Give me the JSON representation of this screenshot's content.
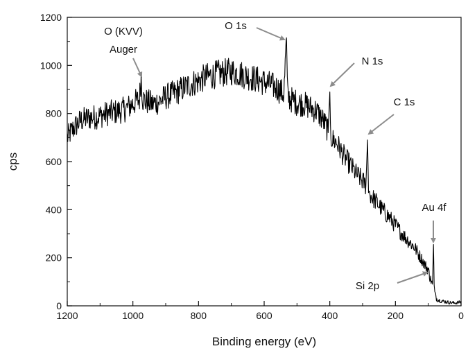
{
  "chart_data": {
    "type": "line",
    "title": "",
    "xlabel": "Binding energy (eV)",
    "ylabel": "cps",
    "xlim": [
      1200,
      0
    ],
    "ylim": [
      0,
      1200
    ],
    "x_reversed": true,
    "x_ticks": [
      1200,
      1000,
      800,
      600,
      400,
      200,
      0
    ],
    "y_ticks": [
      0,
      200,
      400,
      600,
      800,
      1000,
      1200
    ],
    "grid": false,
    "legend": "none",
    "line_color": "#000000",
    "annotation_color": "#8c8c8c",
    "series": [
      {
        "x": [
          1200,
          1180,
          1160,
          1140,
          1120,
          1100,
          1080,
          1060,
          1040,
          1020,
          1000,
          990,
          980,
          975,
          970,
          960,
          940,
          920,
          900,
          880,
          860,
          840,
          820,
          800,
          780,
          760,
          740,
          720,
          700,
          680,
          660,
          640,
          620,
          600,
          580,
          560,
          540,
          532,
          528,
          520,
          500,
          480,
          460,
          440,
          420,
          410,
          405,
          400,
          398,
          395,
          390,
          380,
          360,
          340,
          320,
          300,
          290,
          285,
          282,
          280,
          270,
          260,
          240,
          220,
          200,
          180,
          160,
          140,
          130,
          120,
          110,
          105,
          100,
          95,
          90,
          87,
          84,
          82,
          80,
          75,
          70,
          60,
          50,
          40,
          30,
          20,
          10,
          0
        ],
        "y": [
          700,
          740,
          770,
          780,
          785,
          790,
          800,
          805,
          810,
          820,
          840,
          850,
          860,
          950,
          860,
          850,
          840,
          850,
          870,
          880,
          895,
          910,
          925,
          935,
          950,
          958,
          965,
          970,
          975,
          968,
          960,
          950,
          940,
          930,
          920,
          905,
          880,
          1115,
          870,
          860,
          845,
          840,
          825,
          810,
          770,
          745,
          720,
          890,
          730,
          700,
          690,
          680,
          630,
          590,
          550,
          520,
          500,
          690,
          490,
          470,
          450,
          435,
          400,
          370,
          335,
          300,
          270,
          240,
          215,
          195,
          170,
          160,
          150,
          120,
          100,
          90,
          255,
          80,
          55,
          30,
          25,
          20,
          18,
          15,
          13,
          12,
          14,
          15
        ]
      }
    ],
    "annotations": [
      {
        "text": "O (KVV)",
        "x": 975,
        "y": 950
      },
      {
        "text": "Auger",
        "x": 975,
        "y": 950
      },
      {
        "text": "O 1s",
        "x": 532,
        "y": 1115
      },
      {
        "text": "N 1s",
        "x": 400,
        "y": 890
      },
      {
        "text": "C 1s",
        "x": 285,
        "y": 690
      },
      {
        "text": "Au 4f",
        "x": 84,
        "y": 255
      },
      {
        "text": "Si 2p",
        "x": 100,
        "y": 150
      }
    ]
  }
}
